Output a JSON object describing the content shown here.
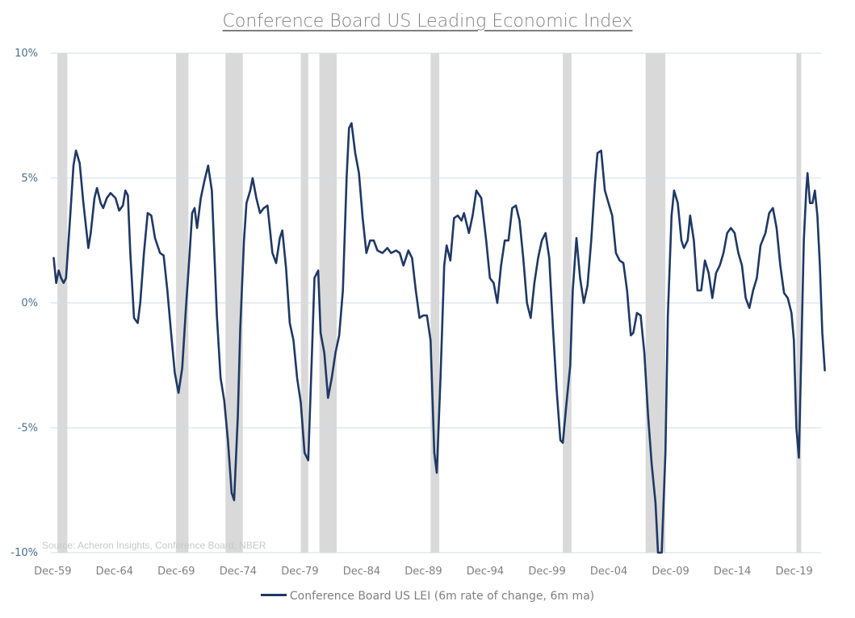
{
  "chart_data": {
    "type": "line",
    "title": "Conference Board US Leading Economic Index",
    "source_note": "Source: Acheron Insights, Conference Board, NBER",
    "ylim": [
      -10,
      10
    ],
    "yticks": [
      10,
      5,
      0,
      -5,
      -10
    ],
    "ytick_labels": [
      "10%",
      "5%",
      "0%",
      "-5%",
      "-10%"
    ],
    "xlim": [
      1959.9,
      2022.1
    ],
    "xticks": [
      1959.92,
      1964.92,
      1969.92,
      1974.92,
      1979.92,
      1984.92,
      1989.92,
      1994.92,
      1999.92,
      2004.92,
      2009.92,
      2014.92,
      2019.92
    ],
    "xtick_labels": [
      "Dec-59",
      "Dec-64",
      "Dec-69",
      "Dec-74",
      "Dec-79",
      "Dec-84",
      "Dec-89",
      "Dec-94",
      "Dec-99",
      "Dec-04",
      "Dec-09",
      "Dec-14",
      "Dec-19"
    ],
    "grid": "horizontal",
    "legend_position": "bottom",
    "recessions": [
      [
        1960.3,
        1961.1
      ],
      [
        1969.9,
        1970.9
      ],
      [
        1973.9,
        1975.3
      ],
      [
        1980.0,
        1980.6
      ],
      [
        1981.5,
        1982.9
      ],
      [
        1990.5,
        1991.2
      ],
      [
        2001.2,
        2001.9
      ],
      [
        2007.9,
        2009.5
      ],
      [
        2020.1,
        2020.4
      ]
    ],
    "series": [
      {
        "name": "Conference Board US LEI (6m rate of change, 6m ma)",
        "color": "#1f3864",
        "points": [
          [
            1960.0,
            1.8
          ],
          [
            1960.2,
            0.8
          ],
          [
            1960.4,
            1.3
          ],
          [
            1960.6,
            1.0
          ],
          [
            1960.8,
            0.8
          ],
          [
            1961.0,
            1.0
          ],
          [
            1961.3,
            3.2
          ],
          [
            1961.6,
            5.5
          ],
          [
            1961.8,
            6.1
          ],
          [
            1962.1,
            5.6
          ],
          [
            1962.4,
            4.0
          ],
          [
            1962.8,
            2.2
          ],
          [
            1963.0,
            2.8
          ],
          [
            1963.3,
            4.2
          ],
          [
            1963.5,
            4.6
          ],
          [
            1963.8,
            4.0
          ],
          [
            1964.0,
            3.8
          ],
          [
            1964.3,
            4.2
          ],
          [
            1964.6,
            4.4
          ],
          [
            1965.0,
            4.2
          ],
          [
            1965.3,
            3.7
          ],
          [
            1965.6,
            3.9
          ],
          [
            1965.8,
            4.5
          ],
          [
            1966.0,
            4.3
          ],
          [
            1966.2,
            2.0
          ],
          [
            1966.5,
            -0.6
          ],
          [
            1966.8,
            -0.8
          ],
          [
            1967.0,
            0.0
          ],
          [
            1967.3,
            2.0
          ],
          [
            1967.6,
            3.6
          ],
          [
            1967.9,
            3.5
          ],
          [
            1968.2,
            2.6
          ],
          [
            1968.6,
            2.0
          ],
          [
            1968.9,
            1.9
          ],
          [
            1969.2,
            0.5
          ],
          [
            1969.5,
            -1.2
          ],
          [
            1969.8,
            -2.8
          ],
          [
            1970.1,
            -3.6
          ],
          [
            1970.4,
            -2.6
          ],
          [
            1970.7,
            -0.2
          ],
          [
            1971.0,
            2.0
          ],
          [
            1971.2,
            3.6
          ],
          [
            1971.4,
            3.8
          ],
          [
            1971.6,
            3.0
          ],
          [
            1971.9,
            4.2
          ],
          [
            1972.2,
            4.9
          ],
          [
            1972.5,
            5.5
          ],
          [
            1972.8,
            4.5
          ],
          [
            1973.0,
            2.0
          ],
          [
            1973.2,
            -0.5
          ],
          [
            1973.5,
            -3.0
          ],
          [
            1973.8,
            -3.9
          ],
          [
            1974.1,
            -5.5
          ],
          [
            1974.4,
            -7.6
          ],
          [
            1974.6,
            -7.9
          ],
          [
            1974.9,
            -4.5
          ],
          [
            1975.1,
            -1.0
          ],
          [
            1975.4,
            2.5
          ],
          [
            1975.6,
            4.0
          ],
          [
            1975.9,
            4.5
          ],
          [
            1976.1,
            5.0
          ],
          [
            1976.4,
            4.2
          ],
          [
            1976.7,
            3.6
          ],
          [
            1977.0,
            3.8
          ],
          [
            1977.3,
            3.9
          ],
          [
            1977.7,
            2.0
          ],
          [
            1978.0,
            1.6
          ],
          [
            1978.3,
            2.6
          ],
          [
            1978.5,
            2.9
          ],
          [
            1978.8,
            1.4
          ],
          [
            1979.1,
            -0.8
          ],
          [
            1979.4,
            -1.5
          ],
          [
            1979.7,
            -3.0
          ],
          [
            1980.0,
            -4.0
          ],
          [
            1980.3,
            -6.0
          ],
          [
            1980.6,
            -6.3
          ],
          [
            1980.9,
            -2.0
          ],
          [
            1981.1,
            1.0
          ],
          [
            1981.4,
            1.3
          ],
          [
            1981.6,
            -1.2
          ],
          [
            1981.9,
            -2.0
          ],
          [
            1982.2,
            -3.8
          ],
          [
            1982.5,
            -3.0
          ],
          [
            1982.8,
            -2.0
          ],
          [
            1983.1,
            -1.3
          ],
          [
            1983.4,
            0.5
          ],
          [
            1983.7,
            5.0
          ],
          [
            1983.9,
            7.0
          ],
          [
            1984.1,
            7.2
          ],
          [
            1984.4,
            6.0
          ],
          [
            1984.7,
            5.2
          ],
          [
            1985.0,
            3.4
          ],
          [
            1985.3,
            2.0
          ],
          [
            1985.6,
            2.5
          ],
          [
            1985.9,
            2.5
          ],
          [
            1986.2,
            2.1
          ],
          [
            1986.6,
            2.0
          ],
          [
            1987.0,
            2.2
          ],
          [
            1987.3,
            2.0
          ],
          [
            1987.7,
            2.1
          ],
          [
            1988.0,
            2.0
          ],
          [
            1988.3,
            1.5
          ],
          [
            1988.7,
            2.1
          ],
          [
            1989.0,
            1.8
          ],
          [
            1989.3,
            0.5
          ],
          [
            1989.6,
            -0.6
          ],
          [
            1989.9,
            -0.5
          ],
          [
            1990.2,
            -0.5
          ],
          [
            1990.5,
            -1.5
          ],
          [
            1990.8,
            -6.0
          ],
          [
            1991.0,
            -6.8
          ],
          [
            1991.3,
            -3.0
          ],
          [
            1991.6,
            1.5
          ],
          [
            1991.8,
            2.3
          ],
          [
            1992.1,
            1.7
          ],
          [
            1992.4,
            3.4
          ],
          [
            1992.7,
            3.5
          ],
          [
            1993.0,
            3.3
          ],
          [
            1993.2,
            3.6
          ],
          [
            1993.6,
            2.8
          ],
          [
            1993.9,
            3.5
          ],
          [
            1994.2,
            4.5
          ],
          [
            1994.6,
            4.2
          ],
          [
            1995.0,
            2.5
          ],
          [
            1995.3,
            1.0
          ],
          [
            1995.6,
            0.8
          ],
          [
            1995.9,
            0.0
          ],
          [
            1996.2,
            1.5
          ],
          [
            1996.5,
            2.5
          ],
          [
            1996.8,
            2.5
          ],
          [
            1997.1,
            3.8
          ],
          [
            1997.4,
            3.9
          ],
          [
            1997.7,
            3.3
          ],
          [
            1998.0,
            1.8
          ],
          [
            1998.3,
            0.0
          ],
          [
            1998.6,
            -0.6
          ],
          [
            1998.9,
            0.8
          ],
          [
            1999.2,
            1.8
          ],
          [
            1999.5,
            2.5
          ],
          [
            1999.8,
            2.8
          ],
          [
            2000.1,
            1.8
          ],
          [
            2000.4,
            -1.0
          ],
          [
            2000.7,
            -3.5
          ],
          [
            2001.0,
            -5.5
          ],
          [
            2001.2,
            -5.6
          ],
          [
            2001.5,
            -4.0
          ],
          [
            2001.8,
            -2.5
          ],
          [
            2002.0,
            0.5
          ],
          [
            2002.3,
            2.6
          ],
          [
            2002.6,
            1.0
          ],
          [
            2002.9,
            0.0
          ],
          [
            2003.2,
            0.7
          ],
          [
            2003.5,
            2.5
          ],
          [
            2003.8,
            4.8
          ],
          [
            2004.0,
            6.0
          ],
          [
            2004.3,
            6.1
          ],
          [
            2004.6,
            4.5
          ],
          [
            2004.9,
            4.0
          ],
          [
            2005.2,
            3.5
          ],
          [
            2005.5,
            2.0
          ],
          [
            2005.8,
            1.7
          ],
          [
            2006.1,
            1.6
          ],
          [
            2006.4,
            0.5
          ],
          [
            2006.7,
            -1.3
          ],
          [
            2006.9,
            -1.2
          ],
          [
            2007.2,
            -0.4
          ],
          [
            2007.5,
            -0.5
          ],
          [
            2007.8,
            -2.0
          ],
          [
            2008.1,
            -4.5
          ],
          [
            2008.4,
            -6.5
          ],
          [
            2008.7,
            -8.0
          ],
          [
            2008.9,
            -10.0
          ],
          [
            2009.2,
            -10.0
          ],
          [
            2009.5,
            -6.0
          ],
          [
            2009.7,
            -0.5
          ],
          [
            2010.0,
            3.5
          ],
          [
            2010.2,
            4.5
          ],
          [
            2010.5,
            4.0
          ],
          [
            2010.8,
            2.5
          ],
          [
            2011.0,
            2.2
          ],
          [
            2011.3,
            2.5
          ],
          [
            2011.5,
            3.5
          ],
          [
            2011.8,
            2.5
          ],
          [
            2012.1,
            0.5
          ],
          [
            2012.4,
            0.5
          ],
          [
            2012.7,
            1.7
          ],
          [
            2013.0,
            1.2
          ],
          [
            2013.3,
            0.2
          ],
          [
            2013.6,
            1.2
          ],
          [
            2013.9,
            1.5
          ],
          [
            2014.2,
            2.0
          ],
          [
            2014.5,
            2.8
          ],
          [
            2014.8,
            3.0
          ],
          [
            2015.1,
            2.8
          ],
          [
            2015.4,
            2.0
          ],
          [
            2015.7,
            1.5
          ],
          [
            2016.0,
            0.2
          ],
          [
            2016.3,
            -0.2
          ],
          [
            2016.6,
            0.5
          ],
          [
            2016.9,
            1.0
          ],
          [
            2017.2,
            2.3
          ],
          [
            2017.6,
            2.8
          ],
          [
            2017.9,
            3.6
          ],
          [
            2018.2,
            3.8
          ],
          [
            2018.5,
            3.0
          ],
          [
            2018.8,
            1.5
          ],
          [
            2019.1,
            0.4
          ],
          [
            2019.4,
            0.2
          ],
          [
            2019.7,
            -0.4
          ],
          [
            2019.9,
            -1.5
          ],
          [
            2020.1,
            -5.0
          ],
          [
            2020.3,
            -6.2
          ],
          [
            2020.5,
            -2.0
          ],
          [
            2020.7,
            2.5
          ],
          [
            2020.9,
            4.5
          ],
          [
            2021.0,
            5.2
          ],
          [
            2021.2,
            4.0
          ],
          [
            2021.4,
            4.0
          ],
          [
            2021.6,
            4.5
          ],
          [
            2021.8,
            3.5
          ],
          [
            2022.0,
            1.5
          ],
          [
            2022.2,
            -1.2
          ],
          [
            2022.4,
            -2.7
          ]
        ]
      }
    ]
  }
}
